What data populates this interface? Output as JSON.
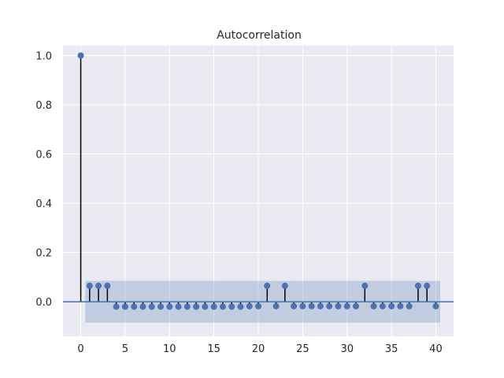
{
  "chart_data": {
    "type": "stem",
    "title": "Autocorrelation",
    "xlabel": "",
    "ylabel": "",
    "xlim": [
      -2,
      42
    ],
    "ylim": [
      -0.14,
      1.04
    ],
    "xticks": [
      0,
      5,
      10,
      15,
      20,
      25,
      30,
      35,
      40
    ],
    "yticks": [
      0.0,
      0.2,
      0.4,
      0.6,
      0.8,
      1.0
    ],
    "xtick_labels": [
      "0",
      "5",
      "10",
      "15",
      "20",
      "25",
      "30",
      "35",
      "40"
    ],
    "ytick_labels": [
      "0.0",
      "0.2",
      "0.4",
      "0.6",
      "0.8",
      "1.0"
    ],
    "grid": true,
    "confidence_band": {
      "lower": -0.085,
      "upper": 0.085,
      "x_start": 0.5,
      "x_end": 40.5
    },
    "lags": [
      0,
      1,
      2,
      3,
      4,
      5,
      6,
      7,
      8,
      9,
      10,
      11,
      12,
      13,
      14,
      15,
      16,
      17,
      18,
      19,
      20,
      21,
      22,
      23,
      24,
      25,
      26,
      27,
      28,
      29,
      30,
      31,
      32,
      33,
      34,
      35,
      36,
      37,
      38,
      39,
      40
    ],
    "values": [
      1.0,
      0.065,
      0.065,
      0.065,
      -0.02,
      -0.02,
      -0.02,
      -0.02,
      -0.02,
      -0.02,
      -0.02,
      -0.02,
      -0.02,
      -0.02,
      -0.02,
      -0.02,
      -0.02,
      -0.02,
      -0.02,
      -0.018,
      -0.018,
      0.065,
      -0.018,
      0.065,
      -0.018,
      -0.018,
      -0.018,
      -0.018,
      -0.018,
      -0.018,
      -0.018,
      -0.018,
      0.065,
      -0.018,
      -0.018,
      -0.018,
      -0.018,
      -0.018,
      0.065,
      0.065,
      -0.018
    ]
  },
  "colors": {
    "background": "#ffffff",
    "plot_area": "#eaeaf2",
    "grid": "#ffffff",
    "marker": "#4c72b0",
    "stem": "#000000",
    "zero_line": "#4c72b0",
    "band": "#4c72b0"
  }
}
